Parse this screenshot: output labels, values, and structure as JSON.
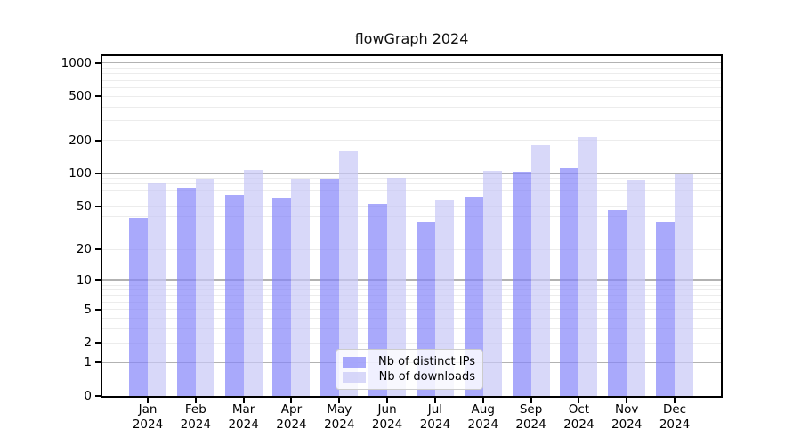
{
  "title": "flowGraph 2024",
  "chart_data": {
    "type": "bar",
    "title": "flowGraph 2024",
    "xlabel": "",
    "ylabel": "",
    "yscale": "symlog (position proportional to log1p(value))",
    "ylim": [
      0,
      1155
    ],
    "yticks": [
      0,
      1,
      2,
      5,
      10,
      20,
      50,
      100,
      200,
      500,
      1000
    ],
    "grid": "horizontal major (1,10,100,1000) + minor (2-9 per decade)",
    "legend_position": "lower center inside plot",
    "categories": [
      {
        "month": "Jan",
        "year": "2024"
      },
      {
        "month": "Feb",
        "year": "2024"
      },
      {
        "month": "Mar",
        "year": "2024"
      },
      {
        "month": "Apr",
        "year": "2024"
      },
      {
        "month": "May",
        "year": "2024"
      },
      {
        "month": "Jun",
        "year": "2024"
      },
      {
        "month": "Jul",
        "year": "2024"
      },
      {
        "month": "Aug",
        "year": "2024"
      },
      {
        "month": "Sep",
        "year": "2024"
      },
      {
        "month": "Oct",
        "year": "2024"
      },
      {
        "month": "Nov",
        "year": "2024"
      },
      {
        "month": "Dec",
        "year": "2024"
      }
    ],
    "series": [
      {
        "name": "Nb of distinct IPs",
        "color": "rgba(133,133,250,0.7)",
        "color_hex_on_white": "#a8a8fa",
        "values": [
          39,
          74,
          64,
          59,
          90,
          53,
          36,
          62,
          103,
          112,
          46,
          36
        ]
      },
      {
        "name": "Nb of downloads",
        "color": "rgba(200,200,247,0.7)",
        "color_hex_on_white": "#d8d8f8",
        "values": [
          82,
          90,
          108,
          89,
          160,
          91,
          57,
          105,
          181,
          216,
          88,
          98
        ]
      }
    ],
    "colors": {
      "grid_major": "#b2b2b2",
      "grid_minor": "#ececec",
      "axis": "#000000"
    }
  }
}
